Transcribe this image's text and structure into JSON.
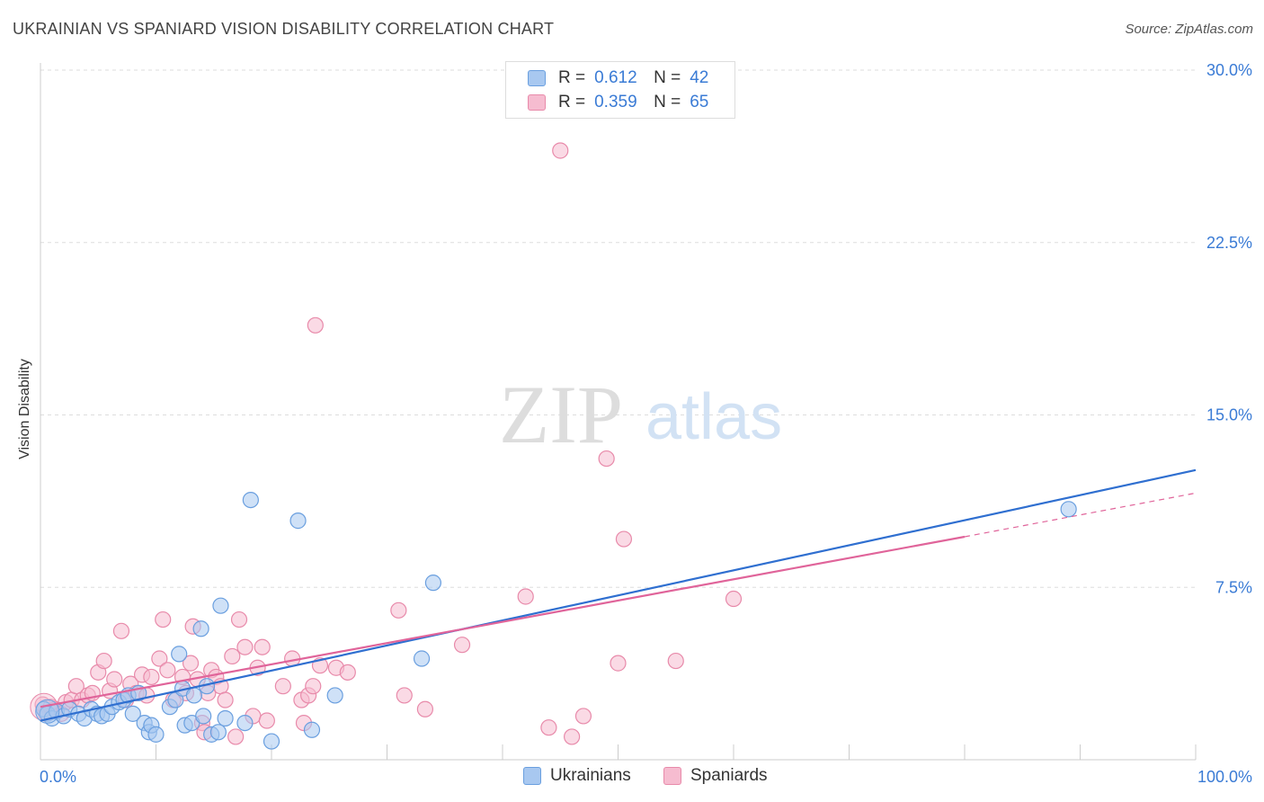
{
  "header": {
    "title": "UKRAINIAN VS SPANIARD VISION DISABILITY CORRELATION CHART",
    "source": "Source: ZipAtlas.com"
  },
  "watermark": {
    "zip": "ZIP",
    "atlas": "atlas"
  },
  "legend": {
    "rows": [
      {
        "r_label": "R =",
        "r_value": "0.612",
        "n_label": "N =",
        "n_value": "42"
      },
      {
        "r_label": "R =",
        "r_value": "0.359",
        "n_label": "N =",
        "n_value": "65"
      }
    ]
  },
  "bottom_legend": {
    "ukrainians": "Ukrainians",
    "spaniards": "Spaniards"
  },
  "colors": {
    "ukrainians_fill": "#a8c8f0",
    "ukrainians_stroke": "#6a9fdf",
    "ukrainians_line": "#2f6fd0",
    "spaniards_fill": "#f6bcd0",
    "spaniards_stroke": "#e88aaa",
    "spaniards_line": "#e0649a",
    "axis_text": "#3a7bd5"
  },
  "chart_data": {
    "type": "scatter",
    "title": "UKRAINIAN VS SPANIARD VISION DISABILITY CORRELATION CHART",
    "xlabel": "",
    "ylabel": "Vision Disability",
    "xlim": [
      0,
      100
    ],
    "ylim": [
      0,
      31
    ],
    "x_tick_labels": [
      "0.0%",
      "100.0%"
    ],
    "y_ticks": [
      7.5,
      15.0,
      22.5,
      30.0
    ],
    "y_tick_labels": [
      "7.5%",
      "15.0%",
      "22.5%",
      "30.0%"
    ],
    "grid": true,
    "legend_position": "top-center",
    "series": [
      {
        "name": "Ukrainians",
        "r": 0.612,
        "n": 42,
        "trend": {
          "x": [
            0,
            100
          ],
          "y": [
            1.7,
            12.6
          ]
        },
        "points": [
          [
            0.3,
            2.2
          ],
          [
            0.6,
            2.0
          ],
          [
            1.0,
            1.8
          ],
          [
            1.4,
            2.1
          ],
          [
            2.0,
            1.9
          ],
          [
            2.5,
            2.2
          ],
          [
            3.3,
            2.0
          ],
          [
            3.8,
            1.8
          ],
          [
            4.4,
            2.2
          ],
          [
            4.9,
            2.0
          ],
          [
            5.3,
            1.9
          ],
          [
            5.8,
            2.0
          ],
          [
            6.2,
            2.3
          ],
          [
            6.8,
            2.5
          ],
          [
            7.2,
            2.6
          ],
          [
            7.6,
            2.8
          ],
          [
            8.0,
            2.0
          ],
          [
            8.5,
            2.9
          ],
          [
            9.0,
            1.6
          ],
          [
            9.4,
            1.2
          ],
          [
            9.6,
            1.5
          ],
          [
            10.0,
            1.1
          ],
          [
            11.2,
            2.3
          ],
          [
            11.7,
            2.6
          ],
          [
            12.0,
            4.6
          ],
          [
            12.3,
            3.1
          ],
          [
            12.5,
            1.5
          ],
          [
            13.1,
            1.6
          ],
          [
            13.3,
            2.8
          ],
          [
            13.9,
            5.7
          ],
          [
            14.1,
            1.9
          ],
          [
            14.4,
            3.2
          ],
          [
            14.8,
            1.1
          ],
          [
            15.4,
            1.2
          ],
          [
            15.6,
            6.7
          ],
          [
            16.0,
            1.8
          ],
          [
            17.7,
            1.6
          ],
          [
            18.2,
            11.3
          ],
          [
            20.0,
            0.8
          ],
          [
            22.3,
            10.4
          ],
          [
            23.5,
            1.3
          ],
          [
            25.5,
            2.8
          ],
          [
            33.0,
            4.4
          ],
          [
            34.0,
            7.7
          ],
          [
            89.0,
            10.9
          ]
        ]
      },
      {
        "name": "Spaniards",
        "r": 0.359,
        "n": 65,
        "trend": {
          "x": [
            0,
            80
          ],
          "y": [
            2.3,
            9.7
          ]
        },
        "trend_dashed": {
          "x": [
            80,
            100
          ],
          "y": [
            9.7,
            11.6
          ]
        },
        "points": [
          [
            0.2,
            2.4
          ],
          [
            0.5,
            2.0
          ],
          [
            0.9,
            2.3
          ],
          [
            1.3,
            2.2
          ],
          [
            1.8,
            2.0
          ],
          [
            2.2,
            2.5
          ],
          [
            2.7,
            2.6
          ],
          [
            3.1,
            3.2
          ],
          [
            3.6,
            2.6
          ],
          [
            4.1,
            2.8
          ],
          [
            4.5,
            2.9
          ],
          [
            5.0,
            3.8
          ],
          [
            5.5,
            4.3
          ],
          [
            6.0,
            3.0
          ],
          [
            6.4,
            3.5
          ],
          [
            7.0,
            5.6
          ],
          [
            7.4,
            2.6
          ],
          [
            7.8,
            3.3
          ],
          [
            8.3,
            2.9
          ],
          [
            8.8,
            3.7
          ],
          [
            9.2,
            2.8
          ],
          [
            9.6,
            3.6
          ],
          [
            10.3,
            4.4
          ],
          [
            10.6,
            6.1
          ],
          [
            11.0,
            3.9
          ],
          [
            11.5,
            2.6
          ],
          [
            12.3,
            3.6
          ],
          [
            12.6,
            2.9
          ],
          [
            13.0,
            4.2
          ],
          [
            13.2,
            5.8
          ],
          [
            13.6,
            3.5
          ],
          [
            14.0,
            1.6
          ],
          [
            14.2,
            1.2
          ],
          [
            14.5,
            2.9
          ],
          [
            14.8,
            3.9
          ],
          [
            15.2,
            3.6
          ],
          [
            15.6,
            3.2
          ],
          [
            16.0,
            2.6
          ],
          [
            16.6,
            4.5
          ],
          [
            16.9,
            1.0
          ],
          [
            17.2,
            6.1
          ],
          [
            17.7,
            4.9
          ],
          [
            18.4,
            1.9
          ],
          [
            18.8,
            4.0
          ],
          [
            19.2,
            4.9
          ],
          [
            19.6,
            1.7
          ],
          [
            21.0,
            3.2
          ],
          [
            21.8,
            4.4
          ],
          [
            22.6,
            2.6
          ],
          [
            22.8,
            1.6
          ],
          [
            23.2,
            2.8
          ],
          [
            23.6,
            3.2
          ],
          [
            23.8,
            18.9
          ],
          [
            24.2,
            4.1
          ],
          [
            25.6,
            4.0
          ],
          [
            26.6,
            3.8
          ],
          [
            31.0,
            6.5
          ],
          [
            31.5,
            2.8
          ],
          [
            33.3,
            2.2
          ],
          [
            36.5,
            5.0
          ],
          [
            42.0,
            7.1
          ],
          [
            44.0,
            1.4
          ],
          [
            45.0,
            26.5
          ],
          [
            46.0,
            1.0
          ],
          [
            47.0,
            1.9
          ],
          [
            49.0,
            13.1
          ],
          [
            50.0,
            4.2
          ],
          [
            50.5,
            9.6
          ],
          [
            55.0,
            4.3
          ],
          [
            60.0,
            7.0
          ]
        ]
      }
    ]
  }
}
